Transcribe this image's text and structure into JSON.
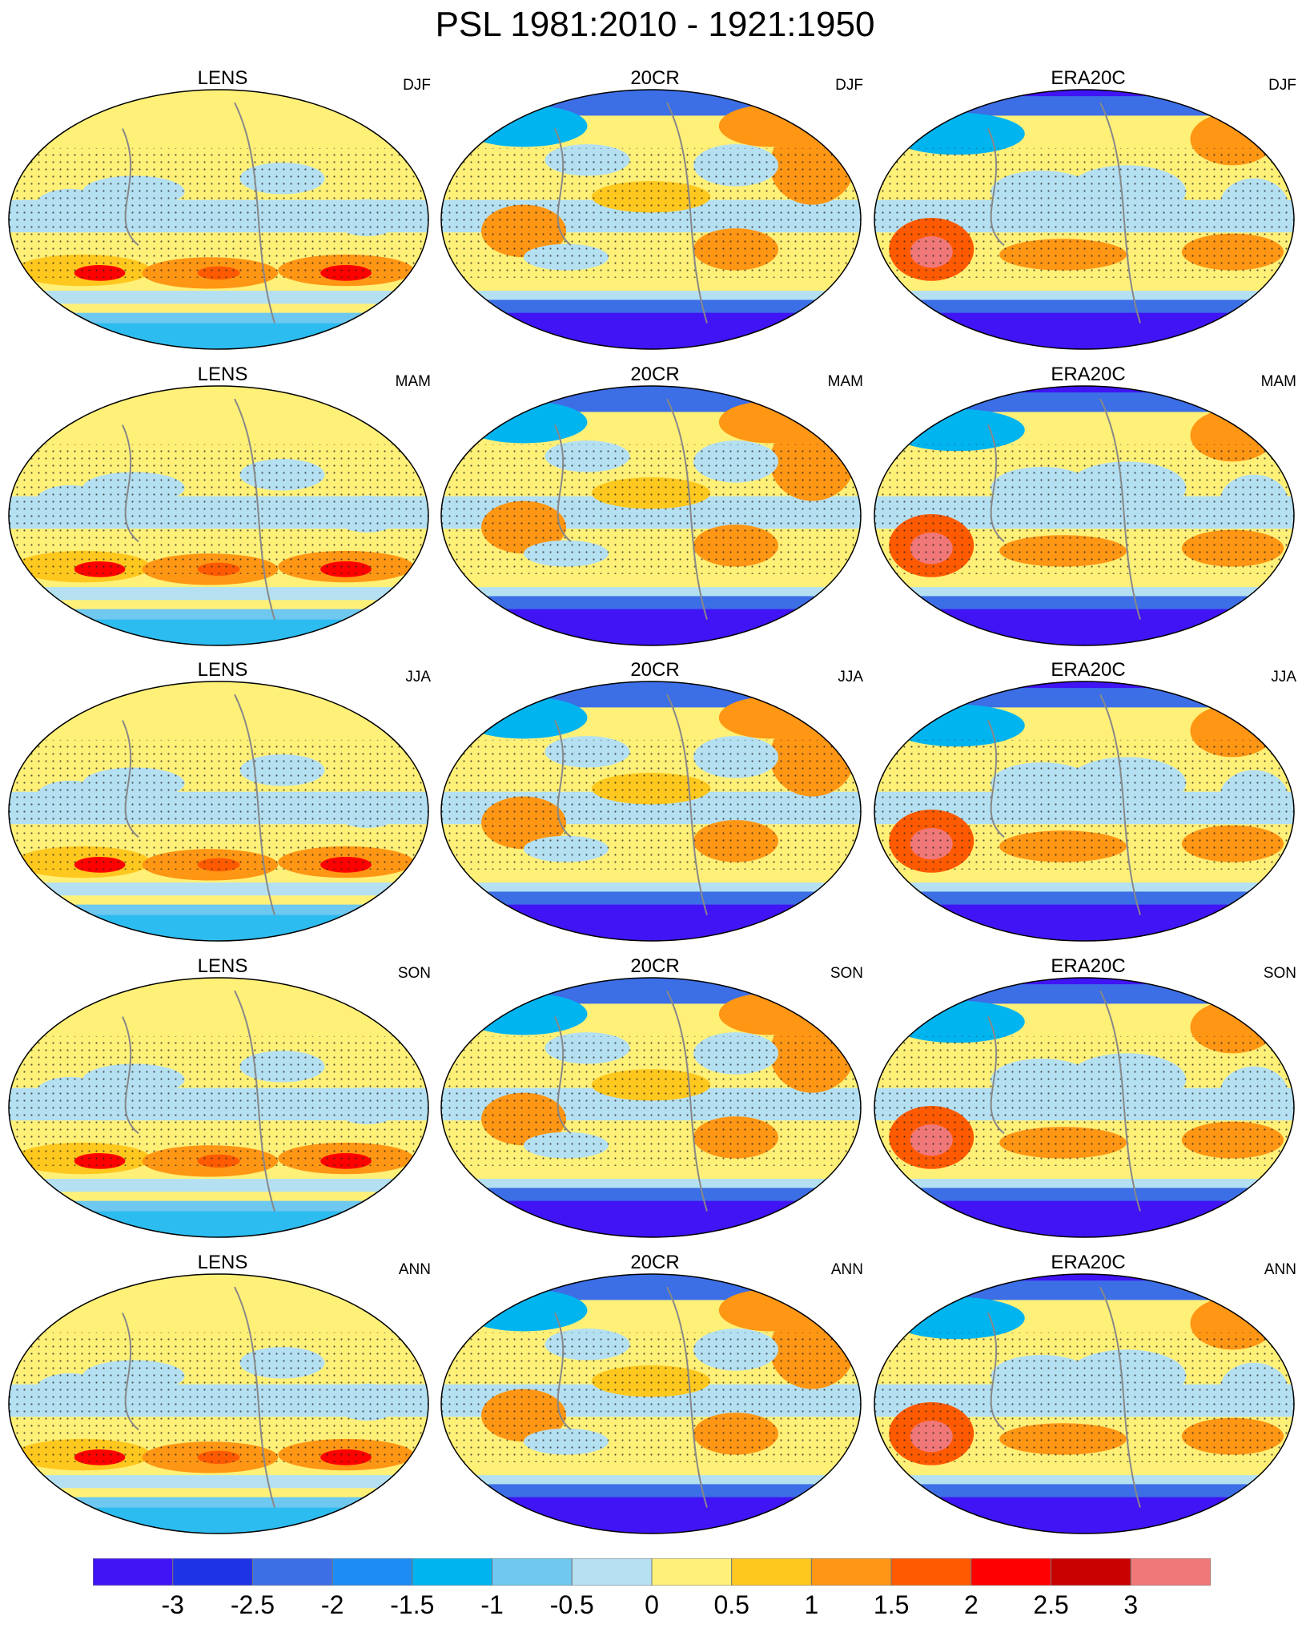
{
  "title": "PSL 1981:2010 - 1921:1950",
  "columns": [
    "LENS",
    "20CR",
    "ERA20C"
  ],
  "rows": [
    "DJF",
    "MAM",
    "JJA",
    "SON",
    "ANN"
  ],
  "panels": [
    {
      "dataset": "LENS",
      "season": "DJF"
    },
    {
      "dataset": "20CR",
      "season": "DJF"
    },
    {
      "dataset": "ERA20C",
      "season": "DJF"
    },
    {
      "dataset": "LENS",
      "season": "MAM"
    },
    {
      "dataset": "20CR",
      "season": "MAM"
    },
    {
      "dataset": "ERA20C",
      "season": "MAM"
    },
    {
      "dataset": "LENS",
      "season": "JJA"
    },
    {
      "dataset": "20CR",
      "season": "JJA"
    },
    {
      "dataset": "ERA20C",
      "season": "JJA"
    },
    {
      "dataset": "LENS",
      "season": "SON"
    },
    {
      "dataset": "20CR",
      "season": "SON"
    },
    {
      "dataset": "ERA20C",
      "season": "SON"
    },
    {
      "dataset": "LENS",
      "season": "ANN"
    },
    {
      "dataset": "20CR",
      "season": "ANN"
    },
    {
      "dataset": "ERA20C",
      "season": "ANN"
    }
  ],
  "colorbar": {
    "labels": [
      "-3",
      "-2.5",
      "-2",
      "-1.5",
      "-1",
      "-0.5",
      "0",
      "0.5",
      "1",
      "1.5",
      "2",
      "2.5",
      "3"
    ],
    "colors": [
      "#4014f5",
      "#1e32e6",
      "#3c6ee6",
      "#1e8cf5",
      "#00b4f0",
      "#6ec8f0",
      "#b4e0f2",
      "#fff078",
      "#ffc81e",
      "#ff9614",
      "#ff5a00",
      "#ff0000",
      "#c80000",
      "#f07878"
    ]
  }
}
